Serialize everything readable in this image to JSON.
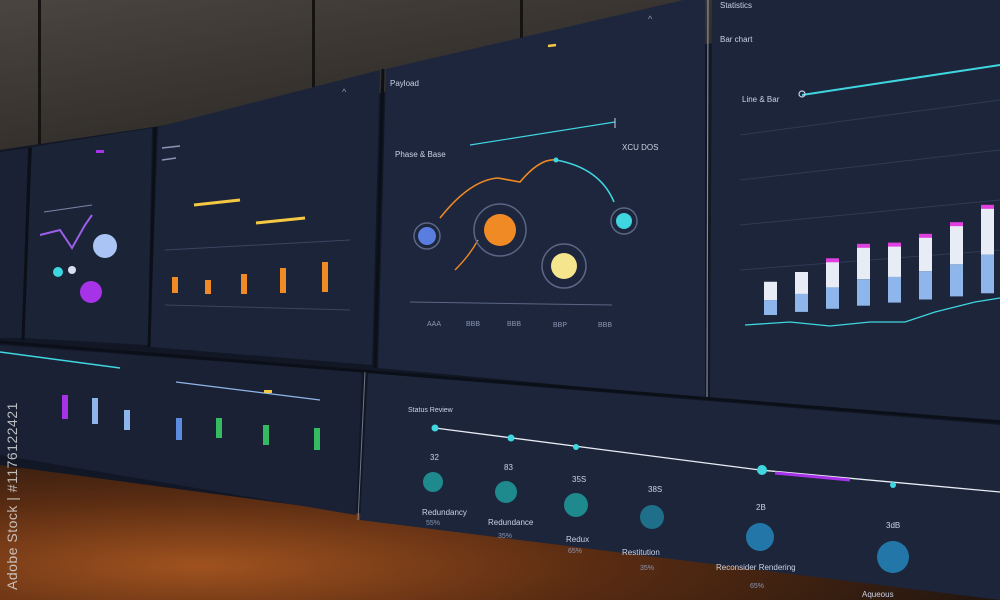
{
  "watermark": {
    "text": "Adobe Stock | #1176122421"
  },
  "panels": {
    "left_small": {
      "title": "",
      "subtitle": ""
    },
    "bars_panel": {
      "title": "",
      "subtitle": ""
    },
    "network_panel": {
      "title": "Payload",
      "legend": "Phase & Base",
      "right_label": "XCU DOS",
      "nodes": [
        {
          "value": "",
          "color": "#5a7de0"
        },
        {
          "value": "",
          "color": "#f08a24"
        },
        {
          "value": "",
          "color": "#f5e58c"
        },
        {
          "value": "",
          "color": "#3fd6e0"
        }
      ],
      "x_ticks": [
        "AAA",
        "BBB",
        "BBB",
        "BBP",
        "BBB"
      ]
    },
    "right_bars": {
      "title": "Statistics",
      "subtitle": "Bar chart",
      "legend": "Line & Bar",
      "values": [
        0.35,
        0.42,
        0.5,
        0.62,
        0.6,
        0.66,
        0.75,
        0.9
      ]
    },
    "bottom_timeline": {
      "title": "Status Review",
      "steps": [
        {
          "top": "32",
          "label": "Redundancy",
          "pct": "55%"
        },
        {
          "top": "83",
          "label": "Redundance",
          "pct": "35%"
        },
        {
          "top": "35S",
          "label": "Redux",
          "pct": "65%"
        },
        {
          "top": "38S",
          "label": "Restitution",
          "pct": "35%"
        },
        {
          "top": "2B",
          "label": "Reconsider Rendering",
          "pct": "65%"
        },
        {
          "top": "3dB",
          "label": "Aqueous",
          "pct": ""
        }
      ]
    }
  },
  "colors": {
    "accent_orange": "#f08a24",
    "accent_cyan": "#3fd6e0",
    "accent_magenta": "#e040e0",
    "accent_yellow": "#f5c842",
    "accent_green": "#3ad66b",
    "bar_white": "#e8ecf5",
    "bar_blue": "#8fb6ea"
  }
}
